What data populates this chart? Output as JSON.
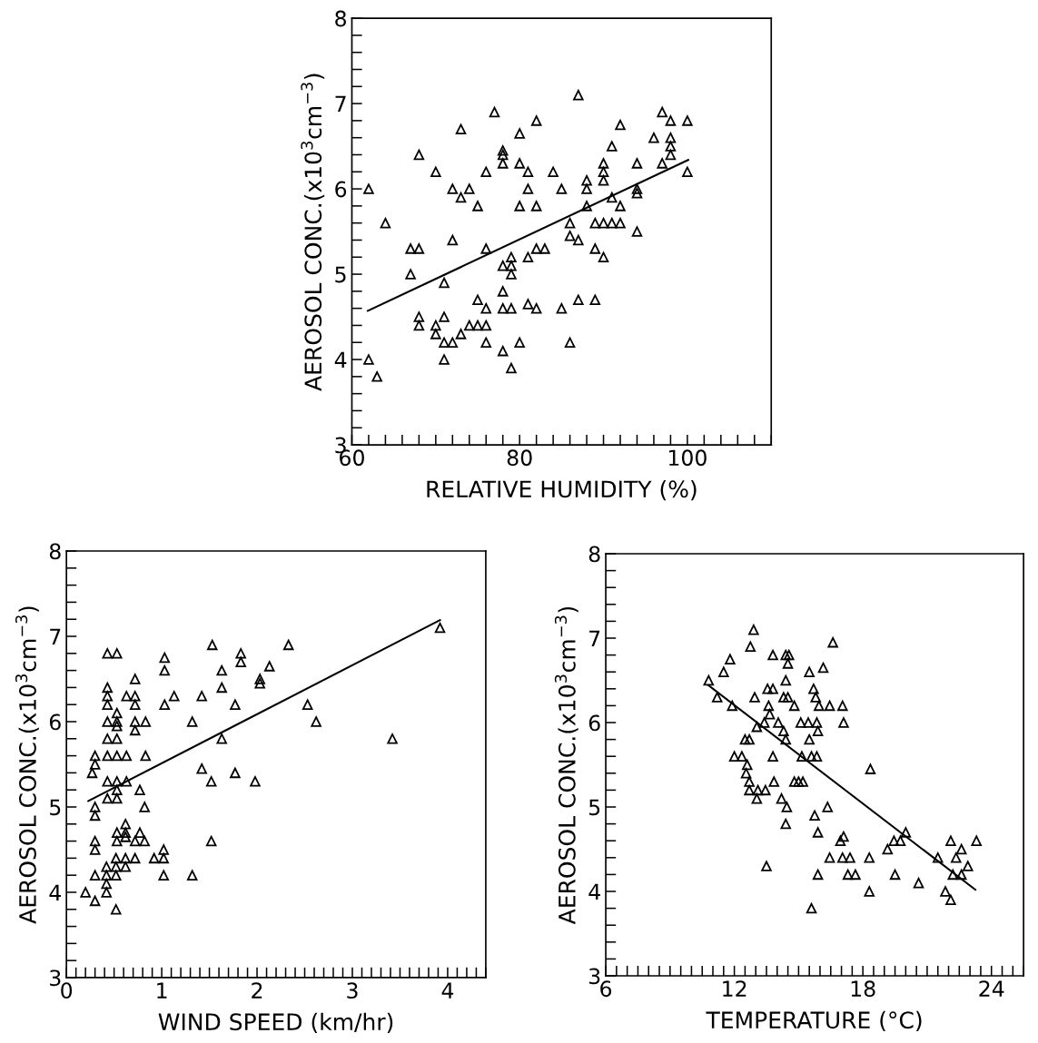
{
  "chart_data": [
    {
      "type": "scatter",
      "xlabel": "RELATIVE HUMIDITY (%)",
      "ylabel": "AEROSOL CONC.(x10$^{3}$cm$^{−3}$)",
      "marker": "triangle",
      "grid": false,
      "xlim": [
        60,
        110
      ],
      "ylim": [
        3,
        8
      ],
      "xticks": [
        60,
        {
          "value": 62,
          "label": null
        },
        {
          "value": 64,
          "label": null
        },
        {
          "value": 66,
          "label": null
        },
        {
          "value": 68,
          "label": null
        },
        {
          "value": 70,
          "label": null
        },
        {
          "value": 72,
          "label": null
        },
        {
          "value": 74,
          "label": null
        },
        {
          "value": 76,
          "label": null
        },
        {
          "value": 78,
          "label": null
        },
        80,
        {
          "value": 82,
          "label": null
        },
        {
          "value": 84,
          "label": null
        },
        {
          "value": 86,
          "label": null
        },
        {
          "value": 88,
          "label": null
        },
        {
          "value": 90,
          "label": null
        },
        {
          "value": 92,
          "label": null
        },
        {
          "value": 94,
          "label": null
        },
        {
          "value": 96,
          "label": null
        },
        {
          "value": 98,
          "label": null
        },
        100,
        {
          "value": 102,
          "label": null
        },
        {
          "value": 104,
          "label": null
        },
        {
          "value": 106,
          "label": null
        },
        {
          "value": 108,
          "label": null
        },
        {
          "value": 110,
          "label": null
        }
      ],
      "yticks": [
        3,
        {
          "value": 3.2,
          "label": null
        },
        {
          "value": 3.4,
          "label": null
        },
        {
          "value": 3.6,
          "label": null
        },
        {
          "value": 3.8,
          "label": null
        },
        4,
        {
          "value": 4.2,
          "label": null
        },
        {
          "value": 4.4,
          "label": null
        },
        {
          "value": 4.6,
          "label": null
        },
        {
          "value": 4.8,
          "label": null
        },
        5,
        {
          "value": 5.2,
          "label": null
        },
        {
          "value": 5.4,
          "label": null
        },
        {
          "value": 5.6,
          "label": null
        },
        {
          "value": 5.8,
          "label": null
        },
        6,
        {
          "value": 6.2,
          "label": null
        },
        {
          "value": 6.4,
          "label": null
        },
        {
          "value": 6.6,
          "label": null
        },
        {
          "value": 6.8,
          "label": null
        },
        7,
        {
          "value": 7.2,
          "label": null
        },
        {
          "value": 7.4,
          "label": null
        },
        {
          "value": 7.6,
          "label": null
        },
        {
          "value": 7.8,
          "label": null
        },
        8
      ],
      "series": [
        {
          "color": "#000000",
          "x": [
            62,
            62,
            63,
            64,
            67,
            67,
            68,
            68,
            68,
            68,
            70,
            70,
            70,
            71,
            71,
            71,
            72,
            71,
            72,
            72,
            73,
            73,
            73,
            74,
            74,
            75,
            76,
            75,
            75,
            76,
            76,
            76,
            76,
            77,
            78,
            78,
            78,
            78,
            78,
            78,
            79,
            78,
            79,
            79,
            79,
            79,
            80,
            80,
            80,
            80,
            81,
            81,
            81,
            81,
            82,
            82,
            82,
            83,
            82,
            84,
            85,
            85,
            86,
            86,
            86,
            87,
            87,
            87,
            88,
            88,
            88,
            89,
            90,
            91,
            92,
            89,
            89,
            90,
            90,
            90,
            90,
            91,
            91,
            92,
            92,
            94,
            94,
            94,
            94,
            96,
            97,
            97,
            98,
            98,
            98,
            98,
            100,
            100
          ],
          "values": [
            6.0,
            4.0,
            3.8,
            5.6,
            5.0,
            5.3,
            5.3,
            6.4,
            4.5,
            4.4,
            6.2,
            4.4,
            4.3,
            4.9,
            4.5,
            4.2,
            4.2,
            4.0,
            5.4,
            6.0,
            6.7,
            5.9,
            4.3,
            6.0,
            4.4,
            4.4,
            4.4,
            5.8,
            4.7,
            6.2,
            5.3,
            4.6,
            4.2,
            6.9,
            6.45,
            6.4,
            6.3,
            5.1,
            4.8,
            4.6,
            4.6,
            4.1,
            5.2,
            5.1,
            5.0,
            3.9,
            6.65,
            6.3,
            5.8,
            4.2,
            6.2,
            6.0,
            5.2,
            4.65,
            6.8,
            5.8,
            5.3,
            5.3,
            4.6,
            6.2,
            6.0,
            4.6,
            5.6,
            5.45,
            4.2,
            7.1,
            5.4,
            4.7,
            6.1,
            6.0,
            5.8,
            5.6,
            5.6,
            5.6,
            5.6,
            5.3,
            4.7,
            6.3,
            6.2,
            6.1,
            5.2,
            6.5,
            5.9,
            6.75,
            5.8,
            6.3,
            6.0,
            5.95,
            5.5,
            6.6,
            6.9,
            6.3,
            6.8,
            6.6,
            6.5,
            6.4,
            6.8,
            6.2
          ]
        },
        {
          "type": "line",
          "color": "#000000",
          "marker": "none",
          "x": [
            61.9,
            100.1
          ],
          "values": [
            4.57,
            6.34
          ]
        }
      ]
    },
    {
      "type": "scatter",
      "xlabel": "WIND SPEED (km/hr)",
      "ylabel": "AEROSOL CONC.(x10$^{3}$cm$^{−3}$)",
      "marker": "triangle",
      "grid": false,
      "xlim": [
        0,
        4.4
      ],
      "ylim": [
        3,
        8
      ],
      "xticks": [
        0,
        {
          "value": 0.1,
          "label": null
        },
        {
          "value": 0.2,
          "label": null
        },
        {
          "value": 0.3,
          "label": null
        },
        {
          "value": 0.4,
          "label": null
        },
        {
          "value": 0.5,
          "label": null
        },
        {
          "value": 0.6,
          "label": null
        },
        {
          "value": 0.7,
          "label": null
        },
        {
          "value": 0.8,
          "label": null
        },
        {
          "value": 0.9,
          "label": null
        },
        1,
        {
          "value": 1.1,
          "label": null
        },
        {
          "value": 1.2,
          "label": null
        },
        {
          "value": 1.3,
          "label": null
        },
        {
          "value": 1.4,
          "label": null
        },
        {
          "value": 1.5,
          "label": null
        },
        {
          "value": 1.6,
          "label": null
        },
        {
          "value": 1.7,
          "label": null
        },
        {
          "value": 1.8,
          "label": null
        },
        {
          "value": 1.9,
          "label": null
        },
        2,
        {
          "value": 2.1,
          "label": null
        },
        {
          "value": 2.2,
          "label": null
        },
        {
          "value": 2.3,
          "label": null
        },
        {
          "value": 2.4,
          "label": null
        },
        {
          "value": 2.5,
          "label": null
        },
        {
          "value": 2.6,
          "label": null
        },
        {
          "value": 2.7,
          "label": null
        },
        {
          "value": 2.8,
          "label": null
        },
        {
          "value": 2.9,
          "label": null
        },
        3,
        {
          "value": 3.1,
          "label": null
        },
        {
          "value": 3.2,
          "label": null
        },
        {
          "value": 3.3,
          "label": null
        },
        {
          "value": 3.4,
          "label": null
        },
        {
          "value": 3.5,
          "label": null
        },
        {
          "value": 3.6,
          "label": null
        },
        {
          "value": 3.7,
          "label": null
        },
        {
          "value": 3.8,
          "label": null
        },
        {
          "value": 3.9,
          "label": null
        },
        4,
        {
          "value": 4.1,
          "label": null
        },
        {
          "value": 4.2,
          "label": null
        },
        {
          "value": 4.3,
          "label": null
        },
        {
          "value": 4.4,
          "label": null
        }
      ],
      "yticks": [
        3,
        {
          "value": 3.2,
          "label": null
        },
        {
          "value": 3.4,
          "label": null
        },
        {
          "value": 3.6,
          "label": null
        },
        {
          "value": 3.8,
          "label": null
        },
        4,
        {
          "value": 4.2,
          "label": null
        },
        {
          "value": 4.4,
          "label": null
        },
        {
          "value": 4.6,
          "label": null
        },
        {
          "value": 4.8,
          "label": null
        },
        5,
        {
          "value": 5.2,
          "label": null
        },
        {
          "value": 5.4,
          "label": null
        },
        {
          "value": 5.6,
          "label": null
        },
        {
          "value": 5.8,
          "label": null
        },
        6,
        {
          "value": 6.2,
          "label": null
        },
        {
          "value": 6.4,
          "label": null
        },
        {
          "value": 6.6,
          "label": null
        },
        {
          "value": 6.8,
          "label": null
        },
        7,
        {
          "value": 7.2,
          "label": null
        },
        {
          "value": 7.4,
          "label": null
        },
        {
          "value": 7.6,
          "label": null
        },
        {
          "value": 7.8,
          "label": null
        },
        8
      ],
      "series": [
        {
          "color": "#000000",
          "x": [
            0.2,
            0.27,
            0.3,
            0.3,
            0.3,
            0.3,
            0.3,
            0.3,
            0.3,
            0.3,
            0.43,
            0.53,
            0.43,
            0.43,
            0.43,
            0.43,
            0.43,
            0.43,
            0.53,
            0.63,
            0.43,
            0.53,
            0.43,
            0.53,
            0.42,
            0.42,
            0.42,
            0.42,
            0.52,
            0.52,
            0.52,
            0.52,
            0.53,
            0.53,
            0.53,
            0.53,
            0.53,
            0.53,
            0.53,
            0.62,
            0.62,
            0.62,
            0.62,
            0.62,
            0.63,
            0.63,
            0.72,
            0.72,
            0.72,
            0.72,
            0.72,
            0.72,
            0.72,
            0.77,
            0.77,
            0.82,
            0.82,
            0.83,
            0.83,
            0.92,
            1.02,
            1.02,
            1.02,
            1.03,
            1.03,
            1.03,
            1.13,
            1.32,
            1.32,
            1.42,
            1.42,
            1.52,
            1.52,
            1.53,
            1.63,
            1.63,
            1.63,
            1.77,
            1.77,
            1.83,
            1.83,
            1.98,
            2.03,
            2.03,
            2.13,
            2.33,
            2.53,
            2.62,
            3.42,
            3.92
          ],
          "values": [
            4.0,
            5.4,
            3.9,
            4.2,
            4.6,
            4.5,
            5.0,
            4.9,
            5.6,
            5.5,
            6.8,
            6.8,
            6.4,
            6.3,
            6.2,
            6.0,
            5.8,
            5.6,
            5.6,
            5.6,
            5.3,
            5.3,
            5.1,
            5.1,
            4.3,
            4.2,
            4.1,
            4.0,
            4.2,
            4.3,
            4.4,
            3.8,
            6.1,
            6.0,
            5.95,
            5.8,
            5.2,
            4.7,
            4.6,
            4.4,
            4.3,
            4.8,
            4.7,
            4.65,
            6.3,
            5.3,
            6.5,
            6.3,
            6.2,
            6.0,
            5.9,
            4.6,
            4.4,
            5.2,
            4.7,
            4.6,
            5.0,
            6.0,
            5.6,
            4.4,
            4.4,
            4.5,
            4.2,
            6.75,
            6.6,
            6.2,
            6.3,
            6.0,
            4.2,
            5.45,
            6.3,
            5.3,
            4.6,
            6.9,
            6.6,
            6.4,
            5.8,
            6.2,
            5.4,
            6.8,
            6.7,
            5.3,
            6.5,
            6.45,
            6.65,
            6.9,
            6.2,
            6.0,
            5.8,
            7.1
          ]
        },
        {
          "type": "line",
          "color": "#000000",
          "marker": "none",
          "x": [
            0.23,
            3.92
          ],
          "values": [
            5.07,
            7.19
          ]
        }
      ]
    },
    {
      "type": "scatter",
      "xlabel": "TEMPERATURE (°C)",
      "ylabel": "AEROSOL CONC.(x10$^{3}$cm$^{−3}$)",
      "marker": "triangle",
      "grid": false,
      "xlim": [
        6,
        25.5
      ],
      "ylim": [
        3,
        8
      ],
      "xticks": [
        6,
        {
          "value": 6.5,
          "label": null
        },
        {
          "value": 7,
          "label": null
        },
        {
          "value": 7.5,
          "label": null
        },
        {
          "value": 8,
          "label": null
        },
        {
          "value": 8.5,
          "label": null
        },
        {
          "value": 9,
          "label": null
        },
        {
          "value": 9.5,
          "label": null
        },
        {
          "value": 10,
          "label": null
        },
        {
          "value": 10.5,
          "label": null
        },
        {
          "value": 11,
          "label": null
        },
        {
          "value": 11.5,
          "label": null
        },
        12,
        {
          "value": 12.5,
          "label": null
        },
        {
          "value": 13,
          "label": null
        },
        {
          "value": 13.5,
          "label": null
        },
        {
          "value": 14,
          "label": null
        },
        {
          "value": 14.5,
          "label": null
        },
        {
          "value": 15,
          "label": null
        },
        {
          "value": 15.5,
          "label": null
        },
        {
          "value": 16,
          "label": null
        },
        {
          "value": 16.5,
          "label": null
        },
        {
          "value": 17,
          "label": null
        },
        {
          "value": 17.5,
          "label": null
        },
        18,
        {
          "value": 18.5,
          "label": null
        },
        {
          "value": 19,
          "label": null
        },
        {
          "value": 19.5,
          "label": null
        },
        {
          "value": 20,
          "label": null
        },
        {
          "value": 20.5,
          "label": null
        },
        {
          "value": 21,
          "label": null
        },
        {
          "value": 21.5,
          "label": null
        },
        {
          "value": 22,
          "label": null
        },
        {
          "value": 22.5,
          "label": null
        },
        {
          "value": 23,
          "label": null
        },
        {
          "value": 23.5,
          "label": null
        },
        24,
        {
          "value": 24.5,
          "label": null
        },
        {
          "value": 25,
          "label": null
        },
        {
          "value": 25.5,
          "label": null
        }
      ],
      "yticks": [
        3,
        {
          "value": 3.2,
          "label": null
        },
        {
          "value": 3.4,
          "label": null
        },
        {
          "value": 3.6,
          "label": null
        },
        {
          "value": 3.8,
          "label": null
        },
        4,
        {
          "value": 4.2,
          "label": null
        },
        {
          "value": 4.4,
          "label": null
        },
        {
          "value": 4.6,
          "label": null
        },
        {
          "value": 4.8,
          "label": null
        },
        5,
        {
          "value": 5.2,
          "label": null
        },
        {
          "value": 5.4,
          "label": null
        },
        {
          "value": 5.6,
          "label": null
        },
        {
          "value": 5.8,
          "label": null
        },
        6,
        {
          "value": 6.2,
          "label": null
        },
        {
          "value": 6.4,
          "label": null
        },
        {
          "value": 6.6,
          "label": null
        },
        {
          "value": 6.8,
          "label": null
        },
        7,
        {
          "value": 7.2,
          "label": null
        },
        {
          "value": 7.4,
          "label": null
        },
        {
          "value": 7.6,
          "label": null
        },
        {
          "value": 7.8,
          "label": null
        },
        8
      ],
      "series": [
        {
          "color": "#000000",
          "x": [
            10.8,
            11.2,
            11.5,
            11.8,
            11.9,
            12.0,
            12.35,
            12.5,
            12.7,
            12.6,
            12.55,
            12.7,
            12.7,
            13.1,
            13.45,
            13.05,
            12.9,
            12.75,
            12.95,
            13.05,
            13.4,
            13.5,
            13.55,
            13.8,
            13.6,
            13.65,
            13.8,
            13.8,
            13.85,
            14.05,
            14.2,
            14.3,
            14.3,
            14.5,
            14.4,
            14.4,
            14.55,
            14.5,
            14.4,
            14.45,
            14.4,
            14.8,
            14.8,
            15.0,
            15.2,
            15.15,
            15.1,
            15.45,
            15.85,
            15.5,
            15.5,
            15.6,
            15.85,
            15.6,
            15.7,
            15.8,
            15.95,
            15.9,
            15.75,
            15.9,
            15.9,
            16.15,
            16.35,
            16.45,
            16.45,
            16.6,
            17.05,
            17.1,
            16.95,
            17.1,
            17.05,
            17.4,
            17.3,
            17.65,
            18.35,
            18.3,
            18.3,
            19.15,
            19.45,
            19.75,
            19.5,
            20.0,
            20.6,
            21.5,
            21.85,
            22.1,
            22.1,
            22.2,
            22.35,
            22.6,
            22.6,
            22.9,
            23.3
          ],
          "values": [
            6.5,
            6.3,
            6.6,
            6.75,
            6.2,
            5.6,
            5.6,
            5.8,
            5.8,
            5.5,
            5.4,
            5.3,
            5.2,
            5.2,
            5.2,
            5.1,
            7.1,
            6.9,
            6.3,
            5.95,
            6.0,
            4.3,
            6.4,
            6.4,
            6.2,
            6.1,
            6.8,
            5.6,
            5.3,
            6.0,
            5.1,
            5.9,
            6.3,
            6.3,
            6.5,
            6.8,
            6.8,
            6.7,
            5.8,
            5.0,
            4.8,
            6.2,
            5.3,
            5.3,
            5.3,
            5.6,
            6.0,
            6.0,
            6.0,
            6.6,
            5.8,
            5.6,
            5.6,
            3.8,
            6.4,
            6.3,
            6.2,
            5.9,
            4.9,
            4.7,
            4.2,
            6.65,
            5.0,
            6.2,
            4.4,
            6.95,
            6.2,
            6.0,
            4.6,
            4.65,
            4.4,
            4.4,
            4.2,
            4.2,
            5.45,
            4.4,
            4.0,
            4.5,
            4.6,
            4.6,
            4.2,
            4.7,
            4.1,
            4.4,
            4.0,
            4.6,
            3.9,
            4.2,
            4.4,
            4.5,
            4.2,
            4.3,
            4.6
          ]
        },
        {
          "type": "line",
          "color": "#000000",
          "marker": "none",
          "x": [
            10.8,
            23.25
          ],
          "values": [
            6.44,
            4.02
          ]
        }
      ]
    }
  ]
}
